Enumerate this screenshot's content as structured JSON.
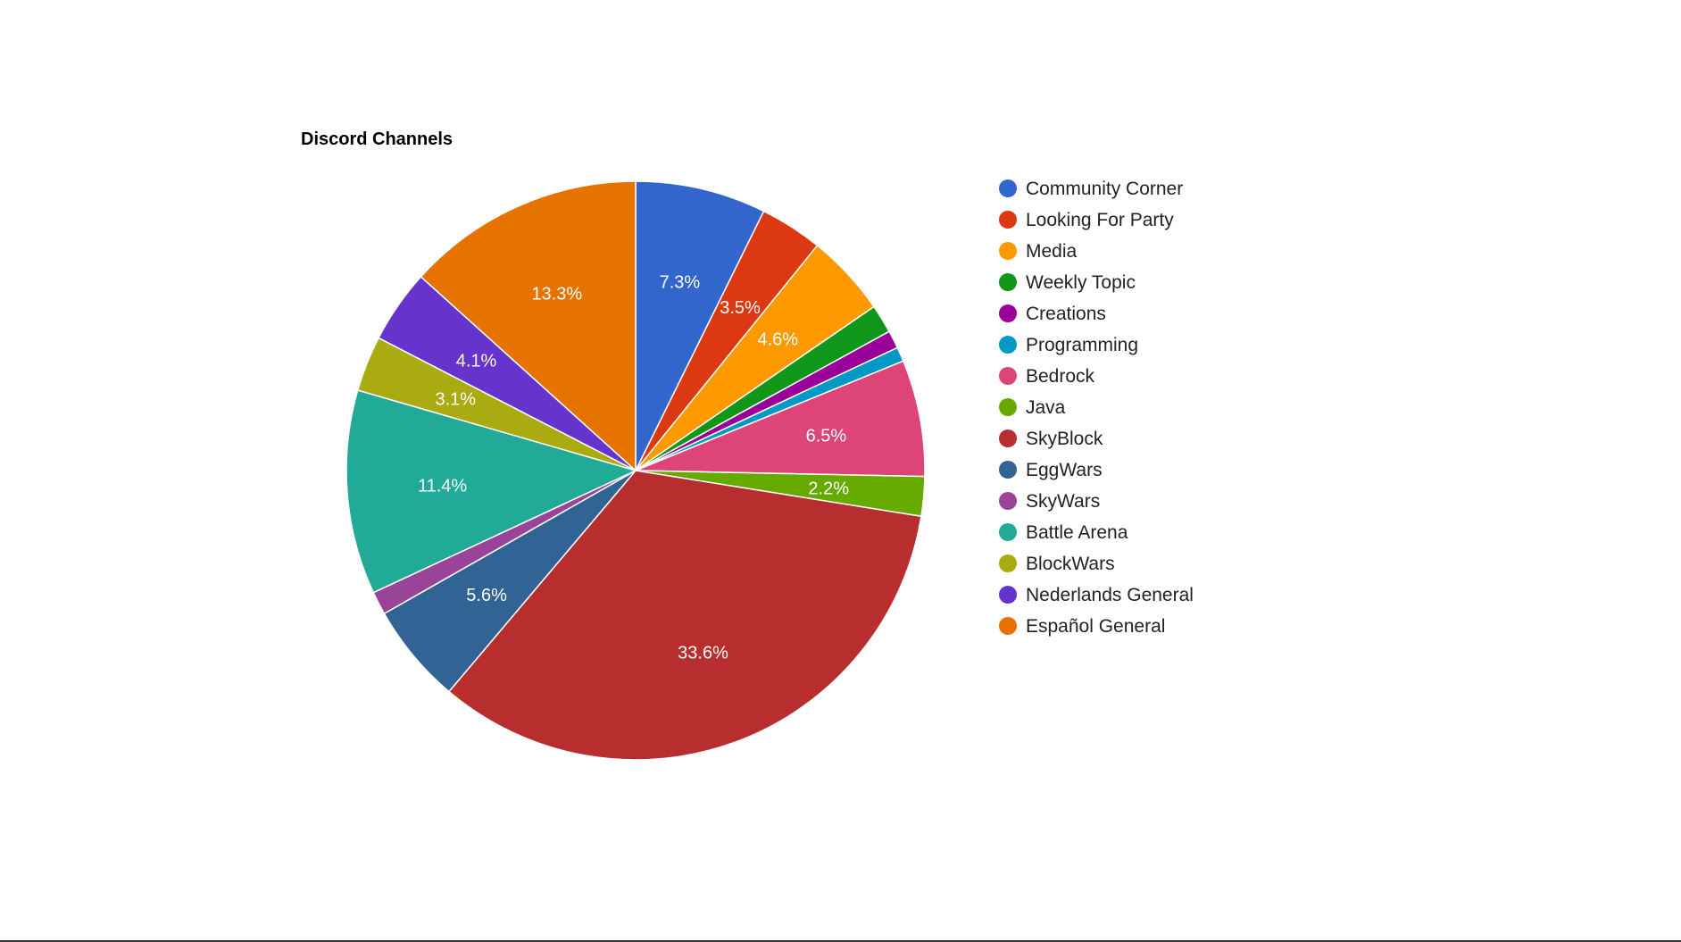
{
  "chart_data": {
    "type": "pie",
    "title": "Discord Channels",
    "legend_position": "right",
    "slices": [
      {
        "name": "Community Corner",
        "value": 7.3,
        "label": "7.3%",
        "color": "#3366cc"
      },
      {
        "name": "Looking For Party",
        "value": 3.5,
        "label": "3.5%",
        "color": "#dc3912"
      },
      {
        "name": "Media",
        "value": 4.6,
        "label": "4.6%",
        "color": "#ff9900"
      },
      {
        "name": "Weekly Topic",
        "value": 1.6,
        "label": "",
        "color": "#109618"
      },
      {
        "name": "Creations",
        "value": 1.0,
        "label": "",
        "color": "#990099"
      },
      {
        "name": "Programming",
        "value": 0.8,
        "label": "",
        "color": "#0099c6"
      },
      {
        "name": "Bedrock",
        "value": 6.5,
        "label": "6.5%",
        "color": "#dd4477"
      },
      {
        "name": "Java",
        "value": 2.2,
        "label": "2.2%",
        "color": "#66aa00"
      },
      {
        "name": "SkyBlock",
        "value": 33.6,
        "label": "33.6%",
        "color": "#b82e2e"
      },
      {
        "name": "EggWars",
        "value": 5.6,
        "label": "5.6%",
        "color": "#316395"
      },
      {
        "name": "SkyWars",
        "value": 1.3,
        "label": "",
        "color": "#994499"
      },
      {
        "name": "Battle Arena",
        "value": 11.4,
        "label": "11.4%",
        "color": "#22aa99"
      },
      {
        "name": "BlockWars",
        "value": 3.1,
        "label": "3.1%",
        "color": "#aaaa11"
      },
      {
        "name": "Nederlands General",
        "value": 4.1,
        "label": "4.1%",
        "color": "#6633cc"
      },
      {
        "name": "Español General",
        "value": 13.3,
        "label": "13.3%",
        "color": "#e67300"
      }
    ]
  }
}
